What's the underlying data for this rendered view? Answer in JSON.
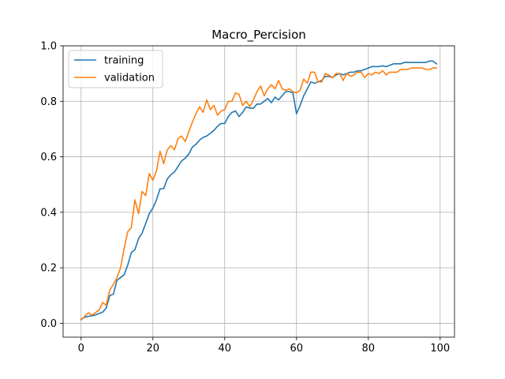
{
  "chart_data": {
    "type": "line",
    "title": "Macro_Percision",
    "xlabel": "",
    "ylabel": "",
    "xlim": [
      -5,
      104
    ],
    "ylim": [
      -0.05,
      1.0
    ],
    "xticks": [
      0,
      20,
      40,
      60,
      80,
      100
    ],
    "xtick_labels": [
      "0",
      "20",
      "40",
      "60",
      "80",
      "100"
    ],
    "yticks": [
      0.0,
      0.2,
      0.4,
      0.6,
      0.8,
      1.0
    ],
    "ytick_labels": [
      "0.0",
      "0.2",
      "0.4",
      "0.6",
      "0.8",
      "1.0"
    ],
    "grid": true,
    "legend_position": "top-left",
    "x": [
      0,
      1,
      2,
      3,
      4,
      5,
      6,
      7,
      8,
      9,
      10,
      11,
      12,
      13,
      14,
      15,
      16,
      17,
      18,
      19,
      20,
      21,
      22,
      23,
      24,
      25,
      26,
      27,
      28,
      29,
      30,
      31,
      32,
      33,
      34,
      35,
      36,
      37,
      38,
      39,
      40,
      41,
      42,
      43,
      44,
      45,
      46,
      47,
      48,
      49,
      50,
      51,
      52,
      53,
      54,
      55,
      56,
      57,
      58,
      59,
      60,
      61,
      62,
      63,
      64,
      65,
      66,
      67,
      68,
      69,
      70,
      71,
      72,
      73,
      74,
      75,
      76,
      77,
      78,
      79,
      80,
      81,
      82,
      83,
      84,
      85,
      86,
      87,
      88,
      89,
      90,
      91,
      92,
      93,
      94,
      95,
      96,
      97,
      98,
      99
    ],
    "series": [
      {
        "name": "training",
        "color": "#1f77b4",
        "values": [
          0.015,
          0.022,
          0.025,
          0.027,
          0.03,
          0.035,
          0.04,
          0.055,
          0.1,
          0.105,
          0.155,
          0.165,
          0.175,
          0.21,
          0.255,
          0.265,
          0.305,
          0.325,
          0.36,
          0.395,
          0.415,
          0.445,
          0.485,
          0.485,
          0.52,
          0.535,
          0.545,
          0.565,
          0.585,
          0.595,
          0.61,
          0.635,
          0.645,
          0.66,
          0.67,
          0.675,
          0.685,
          0.695,
          0.71,
          0.72,
          0.72,
          0.745,
          0.76,
          0.765,
          0.745,
          0.76,
          0.78,
          0.775,
          0.775,
          0.79,
          0.79,
          0.8,
          0.81,
          0.795,
          0.815,
          0.805,
          0.82,
          0.835,
          0.835,
          0.83,
          0.755,
          0.785,
          0.82,
          0.845,
          0.87,
          0.865,
          0.87,
          0.875,
          0.89,
          0.89,
          0.885,
          0.895,
          0.9,
          0.895,
          0.9,
          0.905,
          0.905,
          0.91,
          0.91,
          0.915,
          0.92,
          0.925,
          0.925,
          0.925,
          0.928,
          0.925,
          0.93,
          0.935,
          0.935,
          0.935,
          0.94,
          0.94,
          0.94,
          0.94,
          0.94,
          0.94,
          0.94,
          0.945,
          0.945,
          0.935
        ]
      },
      {
        "name": "validation",
        "color": "#ff7f0e",
        "values": [
          0.012,
          0.025,
          0.038,
          0.03,
          0.038,
          0.048,
          0.075,
          0.065,
          0.12,
          0.14,
          0.165,
          0.2,
          0.27,
          0.33,
          0.345,
          0.445,
          0.395,
          0.475,
          0.46,
          0.54,
          0.515,
          0.55,
          0.62,
          0.575,
          0.625,
          0.64,
          0.625,
          0.665,
          0.675,
          0.655,
          0.69,
          0.725,
          0.755,
          0.78,
          0.76,
          0.805,
          0.77,
          0.785,
          0.75,
          0.765,
          0.77,
          0.8,
          0.8,
          0.83,
          0.825,
          0.785,
          0.8,
          0.78,
          0.805,
          0.835,
          0.855,
          0.82,
          0.845,
          0.86,
          0.845,
          0.875,
          0.845,
          0.84,
          0.845,
          0.835,
          0.83,
          0.84,
          0.88,
          0.865,
          0.905,
          0.905,
          0.87,
          0.87,
          0.9,
          0.895,
          0.885,
          0.9,
          0.9,
          0.875,
          0.9,
          0.89,
          0.895,
          0.905,
          0.905,
          0.885,
          0.9,
          0.895,
          0.905,
          0.9,
          0.91,
          0.895,
          0.905,
          0.905,
          0.905,
          0.915,
          0.915,
          0.915,
          0.92,
          0.92,
          0.92,
          0.92,
          0.915,
          0.915,
          0.92,
          0.92
        ]
      }
    ]
  }
}
